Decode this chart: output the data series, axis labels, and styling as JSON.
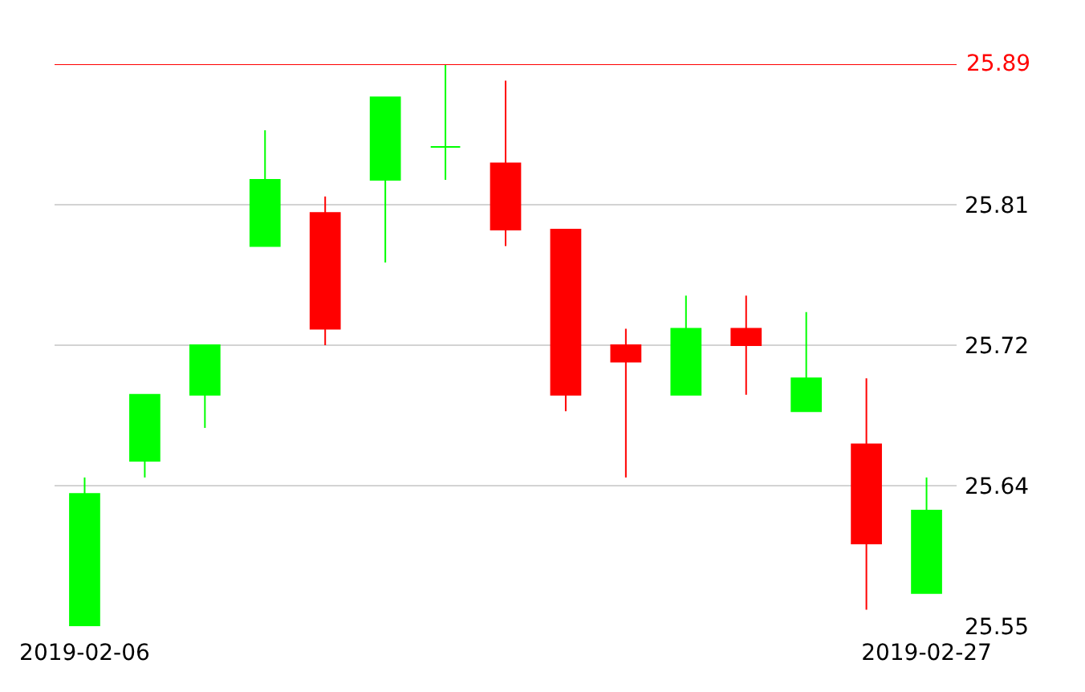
{
  "chart_data": {
    "type": "candlestick",
    "categories": [
      "2019-02-06",
      null,
      null,
      null,
      null,
      null,
      null,
      null,
      null,
      null,
      null,
      null,
      null,
      null,
      "2019-02-27"
    ],
    "ohlc": [
      [
        25.55,
        25.64,
        25.55,
        25.63
      ],
      [
        25.65,
        25.69,
        25.64,
        25.69
      ],
      [
        25.69,
        25.72,
        25.67,
        25.72
      ],
      [
        25.78,
        25.85,
        25.78,
        25.82
      ],
      [
        25.8,
        25.81,
        25.72,
        25.73
      ],
      [
        25.82,
        25.87,
        25.77,
        25.87
      ],
      [
        25.84,
        25.89,
        25.82,
        25.84
      ],
      [
        25.83,
        25.88,
        25.78,
        25.79
      ],
      [
        25.79,
        25.79,
        25.68,
        25.69
      ],
      [
        25.72,
        25.73,
        25.64,
        25.71
      ],
      [
        25.69,
        25.75,
        25.69,
        25.73
      ],
      [
        25.73,
        25.75,
        25.69,
        25.72
      ],
      [
        25.68,
        25.74,
        25.68,
        25.7
      ],
      [
        25.66,
        25.7,
        25.56,
        25.6
      ],
      [
        25.57,
        25.64,
        25.57,
        25.62
      ]
    ],
    "colors": [
      "#00ff00",
      "#00ff00",
      "#00ff00",
      "#00ff00",
      "#ff0000",
      "#00ff00",
      "#00ff00",
      "#ff0000",
      "#ff0000",
      "#ff0000",
      "#00ff00",
      "#ff0000",
      "#00ff00",
      "#ff0000",
      "#00ff00"
    ],
    "ylim": [
      25.55,
      25.89
    ],
    "yticks": [
      25.55,
      {
        "value": 25.635,
        "label": "25.64"
      },
      25.72,
      {
        "value": 25.805,
        "label": "25.81"
      }
    ],
    "grid": "y",
    "ref_lines": [
      {
        "axis": "y",
        "value": 25.89,
        "label": "25.89",
        "color": "#ff0000"
      }
    ]
  }
}
